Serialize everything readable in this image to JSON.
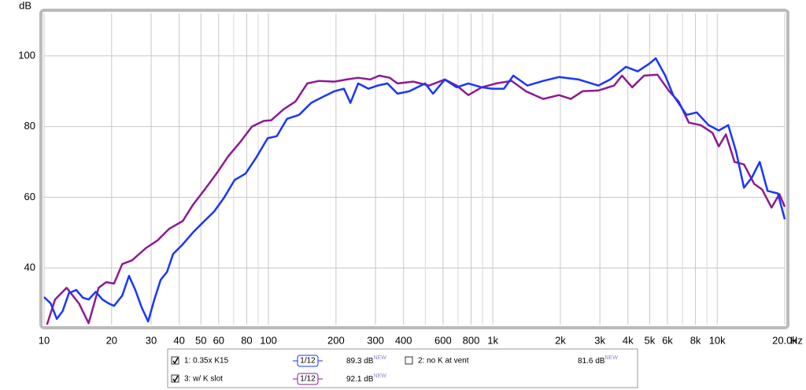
{
  "chart_data": {
    "type": "line",
    "y_label": "dB",
    "x_label": "Hz",
    "xscale": "log",
    "grid": true,
    "xlim": [
      10,
      20000
    ],
    "ylim": [
      24,
      112
    ],
    "yticks": [
      40,
      60,
      80,
      100
    ],
    "xticks": [
      10,
      20,
      30,
      40,
      50,
      60,
      80,
      100,
      200,
      300,
      400,
      600,
      800,
      {
        "value": 1000,
        "label": "1k"
      },
      {
        "value": 2000,
        "label": "2k"
      },
      {
        "value": 3000,
        "label": "3k"
      },
      {
        "value": 4000,
        "label": "4k"
      },
      {
        "value": 5000,
        "label": "5k"
      },
      {
        "value": 6000,
        "label": "6k"
      },
      {
        "value": 8000,
        "label": "8k"
      },
      {
        "value": 10000,
        "label": "10k"
      },
      {
        "value": 20000,
        "label": "20.0k"
      }
    ],
    "xgrid_minor": [
      70,
      90,
      500,
      700,
      900,
      7000,
      9000
    ],
    "series": [
      {
        "name": "1: 0.35x K15",
        "color": "#1a35ff",
        "checked": true,
        "smoothing": "1/12",
        "level": "89.3 dB",
        "badge": "NEW",
        "x": [
          10,
          10.7,
          11.4,
          12.1,
          12.9,
          13.9,
          14.9,
          15.8,
          17.0,
          18.2,
          19.4,
          20.5,
          22.3,
          23.9,
          25.5,
          27.2,
          29.1,
          31.0,
          33.1,
          35.3,
          37.6,
          41.5,
          46.0,
          51.1,
          57.3,
          63.6,
          70.7,
          79.1,
          87.9,
          99.2,
          109,
          121,
          137,
          155,
          175,
          197,
          217,
          232,
          251,
          279,
          307,
          339,
          376,
          425,
          499,
          541,
          611,
          690,
          778,
          893,
          992,
          1120,
          1234,
          1427,
          1677,
          1971,
          2413,
          2953,
          3333,
          3917,
          4422,
          4990,
          5324,
          5867,
          6360,
          7299,
          8107,
          9150,
          10160,
          11196,
          12140,
          13165,
          14270,
          15470,
          16770,
          18630,
          20000
        ],
        "values": [
          31.8,
          30,
          25.6,
          27.8,
          32.9,
          33.8,
          31.6,
          31.1,
          33.3,
          31.1,
          30,
          29.3,
          32.2,
          37.8,
          33.8,
          28.9,
          24.9,
          31.1,
          36.7,
          38.9,
          44,
          46.7,
          50,
          52.9,
          56,
          60,
          64.9,
          66.7,
          71.1,
          76.7,
          77.3,
          82.2,
          83.3,
          86.7,
          88.4,
          90,
          90.7,
          86.7,
          92.2,
          90.7,
          91.6,
          92.2,
          89.3,
          90,
          92.2,
          89.3,
          93.3,
          91.1,
          92.2,
          91.1,
          90.7,
          90.7,
          94.4,
          91.6,
          92.9,
          94,
          93.3,
          91.6,
          93.3,
          96.9,
          95.6,
          97.8,
          99.3,
          94.4,
          88.9,
          83.3,
          84,
          80.4,
          78.9,
          80.4,
          72.9,
          62.7,
          65.6,
          70,
          61.8,
          61.1,
          53.8
        ]
      },
      {
        "name": "2: no K at vent",
        "color": "#e00000",
        "checked": false,
        "level": "81.6 dB",
        "badge": "NEW",
        "x": null,
        "values": null
      },
      {
        "name": "3: w/ K slot",
        "color": "#8e1a92",
        "checked": true,
        "smoothing": "1/12",
        "level": "92.1 dB",
        "badge": "NEW",
        "x": [
          10.3,
          11.2,
          12.6,
          14.3,
          15.8,
          17.5,
          18.9,
          20.5,
          22.3,
          24.7,
          28.4,
          32.0,
          36.1,
          41.5,
          46.0,
          52.0,
          58.7,
          66.2,
          74.8,
          84.4,
          95.3,
          103,
          117,
          132,
          149,
          168,
          197,
          223,
          251,
          284,
          312,
          347,
          376,
          442,
          520,
          611,
          690,
          778,
          893,
          1033,
          1214,
          1404,
          1677,
          1971,
          2226,
          2512,
          2953,
          3470,
          3762,
          4180,
          4718,
          5411,
          6109,
          6730,
          7475,
          8440,
          9527,
          10160,
          10930,
          11950,
          13165,
          14620,
          15850,
          17460,
          18930,
          20000
        ],
        "values": [
          24,
          31.1,
          34.4,
          30,
          24.4,
          34.4,
          36,
          35.6,
          41.1,
          42.2,
          45.6,
          47.8,
          51.1,
          53.3,
          57.8,
          62.2,
          66.7,
          71.6,
          75.6,
          80,
          81.6,
          81.8,
          84.9,
          87.1,
          92.2,
          92.9,
          92.7,
          93.3,
          93.8,
          93.3,
          94.4,
          93.8,
          92.2,
          92.7,
          91.6,
          93.3,
          91.6,
          88.9,
          91.1,
          92.2,
          92.9,
          90,
          87.8,
          88.9,
          87.8,
          90,
          90.2,
          91.6,
          94.4,
          91.1,
          94.4,
          94.7,
          90,
          87.1,
          81.1,
          80.4,
          78.2,
          74.4,
          77.8,
          70,
          69.3,
          63.8,
          62.2,
          57.1,
          60.9,
          57.3
        ]
      }
    ]
  }
}
